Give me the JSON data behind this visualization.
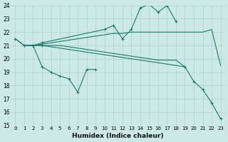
{
  "xlabel": "Humidex (Indice chaleur)",
  "xlim_min": -0.5,
  "xlim_max": 23.5,
  "ylim_min": 15,
  "ylim_max": 24,
  "yticks": [
    15,
    16,
    17,
    18,
    19,
    20,
    21,
    22,
    23,
    24
  ],
  "xticks": [
    0,
    1,
    2,
    3,
    4,
    5,
    6,
    7,
    8,
    9,
    10,
    11,
    12,
    13,
    14,
    15,
    16,
    17,
    18,
    19,
    20,
    21,
    22,
    23
  ],
  "bg_color": "#cce9e5",
  "line_color": "#1a7a6e",
  "grid_color": "#aad4cf",
  "line_A_x": [
    0,
    1,
    2,
    3,
    4,
    5,
    6,
    7,
    8,
    9,
    10,
    11,
    12,
    13,
    14,
    15,
    16,
    17,
    18,
    19,
    20,
    21,
    22,
    23
  ],
  "line_A_y": [
    21.5,
    21.0,
    21.0,
    21.1,
    21.2,
    21.3,
    21.4,
    21.5,
    21.6,
    21.7,
    21.8,
    21.9,
    21.9,
    22.0,
    22.0,
    22.0,
    22.0,
    22.0,
    22.0,
    22.0,
    22.0,
    22.0,
    22.2,
    19.5
  ],
  "line_B_x": [
    1,
    2,
    3,
    10,
    11,
    12,
    13,
    14,
    15,
    16,
    17,
    18
  ],
  "line_B_y": [
    21.0,
    21.0,
    21.2,
    22.2,
    22.5,
    21.5,
    22.2,
    23.8,
    24.1,
    23.5,
    24.0,
    22.8
  ],
  "line_C_x": [
    1,
    2,
    3,
    4,
    5,
    6,
    7,
    8,
    9,
    10,
    11,
    12,
    13,
    14,
    15,
    16,
    17,
    18,
    19
  ],
  "line_C_y": [
    21.0,
    21.0,
    21.0,
    21.0,
    21.0,
    20.9,
    20.8,
    20.7,
    20.6,
    20.5,
    20.4,
    20.3,
    20.2,
    20.1,
    20.0,
    19.9,
    19.9,
    19.9,
    19.4
  ],
  "line_D_x": [
    2,
    3,
    4,
    5,
    6,
    7,
    8,
    9
  ],
  "line_D_y": [
    21.0,
    19.4,
    19.0,
    18.7,
    18.5,
    17.5,
    19.2,
    19.2
  ],
  "line_E_x": [
    0,
    1,
    2,
    3,
    19,
    20,
    21,
    22,
    23
  ],
  "line_E_y": [
    21.5,
    21.0,
    21.0,
    21.0,
    19.4,
    18.3,
    17.7,
    16.7,
    15.5
  ]
}
